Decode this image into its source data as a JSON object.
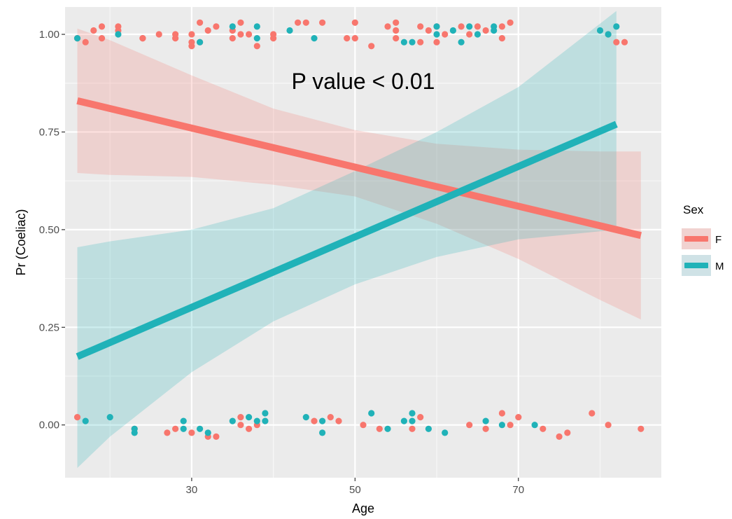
{
  "chart_data": {
    "type": "scatter",
    "title": "",
    "xlabel": "Age",
    "ylabel": "Pr (Coeliac)",
    "xlim": [
      14.5,
      87.5
    ],
    "ylim": [
      -0.135,
      1.07
    ],
    "x_ticks": [
      30,
      50,
      70
    ],
    "x_tick_labels": [
      "30",
      "50",
      "70"
    ],
    "y_ticks": [
      0.0,
      0.25,
      0.5,
      0.75,
      1.0
    ],
    "y_tick_labels": [
      "0.00",
      "0.25",
      "0.50",
      "0.75",
      "1.00"
    ],
    "grid": true,
    "background": "#ebebeb",
    "legend": {
      "title": "Sex",
      "position": "right",
      "entries": [
        {
          "label": "F",
          "color": "#f8766d"
        },
        {
          "label": "M",
          "color": "#20b2b8"
        }
      ]
    },
    "annotation": {
      "text": "P value < 0.01",
      "x": 51,
      "y": 0.86
    },
    "series": [
      {
        "name": "F",
        "color": "#f8766d",
        "fit": {
          "x": [
            16,
            85
          ],
          "y": [
            0.83,
            0.485
          ]
        },
        "ci_band": {
          "x": [
            16,
            20,
            30,
            40,
            50,
            60,
            70,
            80,
            85
          ],
          "lower": [
            0.645,
            0.64,
            0.635,
            0.615,
            0.585,
            0.515,
            0.425,
            0.32,
            0.27
          ],
          "upper": [
            1.015,
            0.985,
            0.895,
            0.81,
            0.755,
            0.72,
            0.705,
            0.7,
            0.7
          ]
        },
        "points": [
          [
            16,
            0.99
          ],
          [
            17,
            0.98
          ],
          [
            18,
            1.01
          ],
          [
            19,
            1.02
          ],
          [
            19,
            0.99
          ],
          [
            21,
            1.02
          ],
          [
            21,
            1.01
          ],
          [
            24,
            0.99
          ],
          [
            24,
            0.99
          ],
          [
            26,
            1.0
          ],
          [
            28,
            1.0
          ],
          [
            28,
            0.99
          ],
          [
            30,
            1.0
          ],
          [
            30,
            0.98
          ],
          [
            30,
            0.97
          ],
          [
            31,
            1.03
          ],
          [
            31,
            0.98
          ],
          [
            32,
            1.01
          ],
          [
            33,
            1.02
          ],
          [
            35,
            1.01
          ],
          [
            35,
            0.99
          ],
          [
            36,
            1.03
          ],
          [
            36,
            1.0
          ],
          [
            37,
            1.0
          ],
          [
            38,
            0.97
          ],
          [
            40,
            1.0
          ],
          [
            40,
            0.99
          ],
          [
            43,
            1.03
          ],
          [
            44,
            1.03
          ],
          [
            46,
            1.03
          ],
          [
            49,
            0.99
          ],
          [
            50,
            0.99
          ],
          [
            50,
            1.03
          ],
          [
            52,
            0.97
          ],
          [
            54,
            1.02
          ],
          [
            55,
            1.03
          ],
          [
            55,
            1.01
          ],
          [
            55,
            0.99
          ],
          [
            58,
            1.02
          ],
          [
            58,
            0.98
          ],
          [
            59,
            1.01
          ],
          [
            60,
            1.02
          ],
          [
            60,
            0.98
          ],
          [
            61,
            1.0
          ],
          [
            63,
            1.02
          ],
          [
            64,
            1.0
          ],
          [
            65,
            1.02
          ],
          [
            66,
            1.01
          ],
          [
            68,
            1.02
          ],
          [
            68,
            0.99
          ],
          [
            69,
            1.03
          ],
          [
            81,
            1.0
          ],
          [
            82,
            0.98
          ],
          [
            83,
            0.98
          ],
          [
            16,
            0.02
          ],
          [
            23,
            -0.01
          ],
          [
            27,
            -0.02
          ],
          [
            28,
            -0.01
          ],
          [
            30,
            -0.02
          ],
          [
            32,
            -0.03
          ],
          [
            33,
            -0.03
          ],
          [
            36,
            0.02
          ],
          [
            36,
            0.0
          ],
          [
            37,
            -0.01
          ],
          [
            38,
            0.0
          ],
          [
            45,
            0.01
          ],
          [
            47,
            0.02
          ],
          [
            48,
            0.01
          ],
          [
            51,
            0.0
          ],
          [
            53,
            -0.01
          ],
          [
            57,
            -0.01
          ],
          [
            58,
            0.02
          ],
          [
            64,
            0.0
          ],
          [
            66,
            -0.01
          ],
          [
            68,
            0.03
          ],
          [
            69,
            0.0
          ],
          [
            70,
            0.02
          ],
          [
            73,
            -0.01
          ],
          [
            75,
            -0.03
          ],
          [
            76,
            -0.02
          ],
          [
            79,
            0.03
          ],
          [
            81,
            0.0
          ],
          [
            85,
            -0.01
          ]
        ]
      },
      {
        "name": "M",
        "color": "#20b2b8",
        "fit": {
          "x": [
            16,
            82
          ],
          "y": [
            0.175,
            0.77
          ]
        },
        "ci_band": {
          "x": [
            16,
            20,
            30,
            40,
            50,
            60,
            70,
            82
          ],
          "lower": [
            -0.11,
            -0.03,
            0.135,
            0.265,
            0.36,
            0.43,
            0.475,
            0.5
          ],
          "upper": [
            0.455,
            0.47,
            0.5,
            0.555,
            0.65,
            0.75,
            0.865,
            1.06
          ]
        },
        "points": [
          [
            16,
            0.99
          ],
          [
            21,
            1.0
          ],
          [
            31,
            0.98
          ],
          [
            35,
            1.02
          ],
          [
            38,
            1.02
          ],
          [
            38,
            0.99
          ],
          [
            42,
            1.01
          ],
          [
            45,
            0.99
          ],
          [
            56,
            0.98
          ],
          [
            57,
            0.98
          ],
          [
            60,
            1.02
          ],
          [
            60,
            1.0
          ],
          [
            62,
            1.01
          ],
          [
            63,
            0.98
          ],
          [
            64,
            1.02
          ],
          [
            65,
            1.0
          ],
          [
            67,
            1.02
          ],
          [
            67,
            1.01
          ],
          [
            80,
            1.01
          ],
          [
            81,
            1.0
          ],
          [
            82,
            1.02
          ],
          [
            17,
            0.01
          ],
          [
            20,
            0.02
          ],
          [
            23,
            -0.02
          ],
          [
            23,
            -0.01
          ],
          [
            29,
            0.01
          ],
          [
            29,
            -0.01
          ],
          [
            31,
            -0.01
          ],
          [
            32,
            -0.02
          ],
          [
            35,
            0.01
          ],
          [
            37,
            0.02
          ],
          [
            38,
            0.01
          ],
          [
            39,
            0.03
          ],
          [
            39,
            0.01
          ],
          [
            44,
            0.02
          ],
          [
            46,
            -0.02
          ],
          [
            46,
            0.01
          ],
          [
            52,
            0.03
          ],
          [
            54,
            -0.01
          ],
          [
            56,
            0.01
          ],
          [
            57,
            0.03
          ],
          [
            57,
            0.01
          ],
          [
            59,
            -0.01
          ],
          [
            61,
            -0.02
          ],
          [
            66,
            0.01
          ],
          [
            68,
            0.0
          ],
          [
            72,
            0.0
          ]
        ]
      }
    ]
  }
}
